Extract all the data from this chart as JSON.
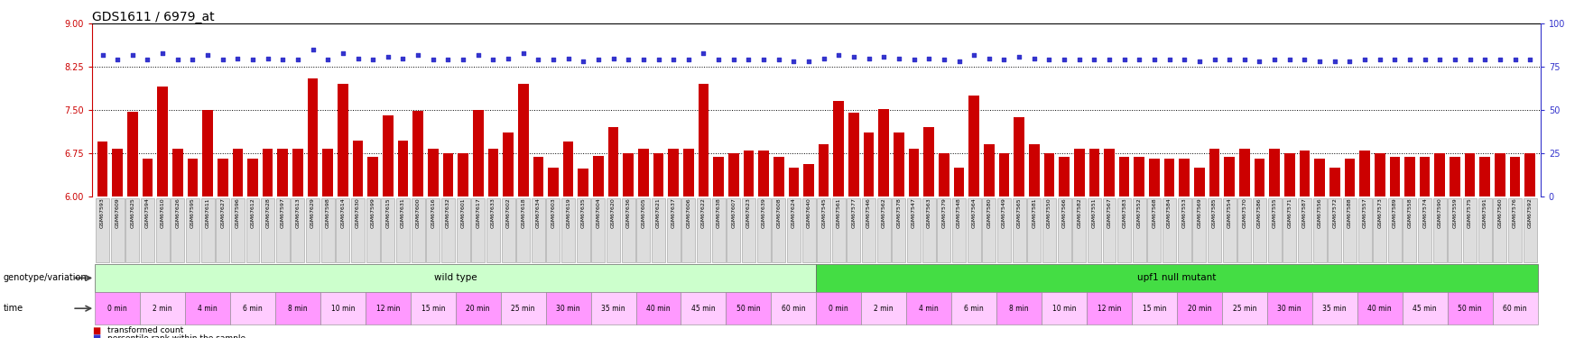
{
  "title": "GDS1611 / 6979_at",
  "samples": [
    "GSM67593",
    "GSM67609",
    "GSM67625",
    "GSM67594",
    "GSM67610",
    "GSM67626",
    "GSM67595",
    "GSM67611",
    "GSM67627",
    "GSM67596",
    "GSM67612",
    "GSM67628",
    "GSM67597",
    "GSM67613",
    "GSM67629",
    "GSM67598",
    "GSM67614",
    "GSM67630",
    "GSM67599",
    "GSM67615",
    "GSM67631",
    "GSM67600",
    "GSM67616",
    "GSM67632",
    "GSM67601",
    "GSM67617",
    "GSM67633",
    "GSM67602",
    "GSM67618",
    "GSM67634",
    "GSM67603",
    "GSM67619",
    "GSM67635",
    "GSM67604",
    "GSM67620",
    "GSM67636",
    "GSM67605",
    "GSM67621",
    "GSM67637",
    "GSM67606",
    "GSM67622",
    "GSM67638",
    "GSM67607",
    "GSM67623",
    "GSM67639",
    "GSM67608",
    "GSM67624",
    "GSM67640",
    "GSM67545",
    "GSM67561",
    "GSM67577",
    "GSM67546",
    "GSM67562",
    "GSM67578",
    "GSM67547",
    "GSM67563",
    "GSM67579",
    "GSM67548",
    "GSM67564",
    "GSM67580",
    "GSM67549",
    "GSM67565",
    "GSM67581",
    "GSM67550",
    "GSM67566",
    "GSM67582",
    "GSM67551",
    "GSM67567",
    "GSM67583",
    "GSM67552",
    "GSM67568",
    "GSM67584",
    "GSM67553",
    "GSM67569",
    "GSM67585",
    "GSM67554",
    "GSM67570",
    "GSM67586",
    "GSM67555",
    "GSM67571",
    "GSM67587",
    "GSM67556",
    "GSM67572",
    "GSM67588",
    "GSM67557",
    "GSM67573",
    "GSM67589",
    "GSM67558",
    "GSM67574",
    "GSM67590",
    "GSM67559",
    "GSM67575",
    "GSM67591",
    "GSM67560",
    "GSM67576",
    "GSM67592"
  ],
  "bar_values": [
    6.95,
    6.83,
    7.47,
    6.65,
    7.9,
    6.82,
    6.65,
    7.5,
    6.65,
    6.83,
    6.65,
    6.83,
    6.83,
    6.83,
    8.05,
    6.83,
    7.95,
    6.97,
    6.68,
    7.4,
    6.97,
    7.48,
    6.83,
    6.75,
    6.75,
    7.5,
    6.83,
    7.1,
    7.95,
    6.68,
    6.5,
    6.95,
    6.48,
    6.7,
    7.2,
    6.75,
    6.83,
    6.75,
    6.83,
    6.83,
    7.95,
    6.68,
    6.75,
    6.8,
    6.8,
    6.68,
    6.5,
    6.55,
    6.9,
    7.65,
    7.45,
    7.1,
    7.52,
    7.1,
    6.83,
    7.2,
    6.75,
    6.5,
    7.75,
    6.9,
    6.75,
    7.38,
    6.9,
    6.75,
    6.68,
    6.83,
    6.83,
    6.83,
    6.68,
    6.68,
    6.65,
    6.65,
    6.65,
    6.5,
    6.83,
    6.68,
    6.83,
    6.65,
    6.83,
    6.75,
    6.8,
    6.65,
    6.5,
    6.65,
    6.8,
    6.75,
    6.68,
    6.68,
    6.68,
    6.75,
    6.68,
    6.75,
    6.68,
    6.75,
    6.68,
    6.75
  ],
  "dot_values": [
    82,
    79,
    82,
    79,
    83,
    79,
    79,
    82,
    79,
    80,
    79,
    80,
    79,
    79,
    85,
    79,
    83,
    80,
    79,
    81,
    80,
    82,
    79,
    79,
    79,
    82,
    79,
    80,
    83,
    79,
    79,
    80,
    78,
    79,
    80,
    79,
    79,
    79,
    79,
    79,
    83,
    79,
    79,
    79,
    79,
    79,
    78,
    78,
    80,
    82,
    81,
    80,
    81,
    80,
    79,
    80,
    79,
    78,
    82,
    80,
    79,
    81,
    80,
    79,
    79,
    79,
    79,
    79,
    79,
    79,
    79,
    79,
    79,
    78,
    79,
    79,
    79,
    78,
    79,
    79,
    79,
    78,
    78,
    78,
    79,
    79,
    79,
    79,
    79,
    79,
    79,
    79,
    79,
    79,
    79,
    79
  ],
  "ylim_left": [
    6.0,
    9.0
  ],
  "ylim_right": [
    0,
    100
  ],
  "yticks_left": [
    6.0,
    6.75,
    7.5,
    8.25,
    9.0
  ],
  "yticks_right": [
    0,
    25,
    50,
    75,
    100
  ],
  "bar_color": "#cc0000",
  "dot_color": "#3333cc",
  "dotted_lines": [
    6.75,
    7.5,
    8.25
  ],
  "wt_color": "#ccffcc",
  "upf1_color": "#44dd44",
  "time_color1": "#ff99ff",
  "time_color2": "#ffccff",
  "time_labels": [
    "0 min",
    "2 min",
    "4 min",
    "6 min",
    "8 min",
    "10 min",
    "12 min",
    "15 min",
    "20 min",
    "25 min",
    "30 min",
    "35 min",
    "40 min",
    "45 min",
    "50 min",
    "60 min"
  ],
  "wt_n": 48,
  "upf1_n": 48
}
